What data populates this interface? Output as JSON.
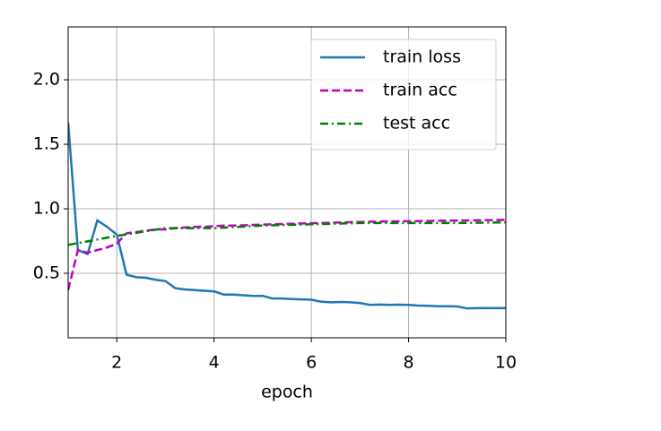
{
  "chart_data": {
    "type": "line",
    "xlabel": "epoch",
    "xlim": [
      1,
      10
    ],
    "ylim": [
      0,
      2.41
    ],
    "xticks": [
      2,
      4,
      6,
      8,
      10
    ],
    "yticks": [
      0.5,
      {
        "value": 1.0,
        "label": "1.0"
      },
      1.5,
      {
        "value": 2.0,
        "label": "2.0"
      }
    ],
    "grid": true,
    "legend": "upper right",
    "series": [
      {
        "name": "train loss",
        "color": "#1f77b4",
        "linestyle": "solid",
        "x": [
          1.0,
          1.2,
          1.4,
          1.6,
          1.8,
          2.0,
          2.2,
          2.4,
          2.6,
          2.8,
          3.0,
          3.2,
          3.4,
          3.6,
          3.8,
          4.0,
          4.2,
          4.4,
          4.6,
          4.8,
          5.0,
          5.2,
          5.4,
          5.6,
          5.8,
          6.0,
          6.2,
          6.4,
          6.6,
          6.8,
          7.0,
          7.2,
          7.4,
          7.6,
          7.8,
          8.0,
          8.2,
          8.4,
          8.6,
          8.8,
          9.0,
          9.2,
          9.4,
          9.6,
          9.8,
          10.0
        ],
        "values": [
          1.67,
          0.68,
          0.65,
          0.91,
          0.86,
          0.8,
          0.49,
          0.47,
          0.465,
          0.45,
          0.44,
          0.385,
          0.375,
          0.37,
          0.365,
          0.36,
          0.335,
          0.335,
          0.33,
          0.325,
          0.325,
          0.305,
          0.305,
          0.3,
          0.298,
          0.295,
          0.28,
          0.275,
          0.278,
          0.275,
          0.27,
          0.255,
          0.258,
          0.255,
          0.257,
          0.255,
          0.25,
          0.248,
          0.245,
          0.245,
          0.243,
          0.228,
          0.23,
          0.23,
          0.23,
          0.23
        ]
      },
      {
        "name": "train acc",
        "color": "#bf00bf",
        "linestyle": "dashed",
        "x": [
          1.0,
          1.2,
          1.4,
          1.6,
          1.8,
          2.0,
          2.2,
          2.4,
          2.6,
          2.8,
          3.0,
          3.2,
          3.4,
          3.6,
          3.8,
          4.0,
          4.2,
          4.4,
          4.6,
          4.8,
          5.0,
          5.2,
          5.4,
          5.6,
          5.8,
          6.0,
          6.2,
          6.4,
          6.6,
          6.8,
          7.0,
          7.2,
          7.4,
          7.6,
          7.8,
          8.0,
          8.2,
          8.4,
          8.6,
          8.8,
          9.0,
          9.2,
          9.4,
          9.6,
          9.8,
          10.0
        ],
        "values": [
          0.37,
          0.68,
          0.66,
          0.68,
          0.7,
          0.73,
          0.81,
          0.82,
          0.83,
          0.84,
          0.84,
          0.85,
          0.855,
          0.86,
          0.86,
          0.865,
          0.87,
          0.87,
          0.872,
          0.875,
          0.878,
          0.88,
          0.882,
          0.884,
          0.886,
          0.888,
          0.89,
          0.892,
          0.894,
          0.896,
          0.898,
          0.9,
          0.901,
          0.902,
          0.903,
          0.904,
          0.905,
          0.906,
          0.907,
          0.908,
          0.909,
          0.91,
          0.911,
          0.912,
          0.913,
          0.914
        ]
      },
      {
        "name": "test acc",
        "color": "#008000",
        "linestyle": "dashdot",
        "x": [
          1,
          2,
          3,
          4,
          5,
          6,
          7,
          8,
          9,
          10
        ],
        "values": [
          0.72,
          0.79,
          0.85,
          0.85,
          0.87,
          0.88,
          0.89,
          0.89,
          0.89,
          0.895
        ]
      }
    ]
  }
}
